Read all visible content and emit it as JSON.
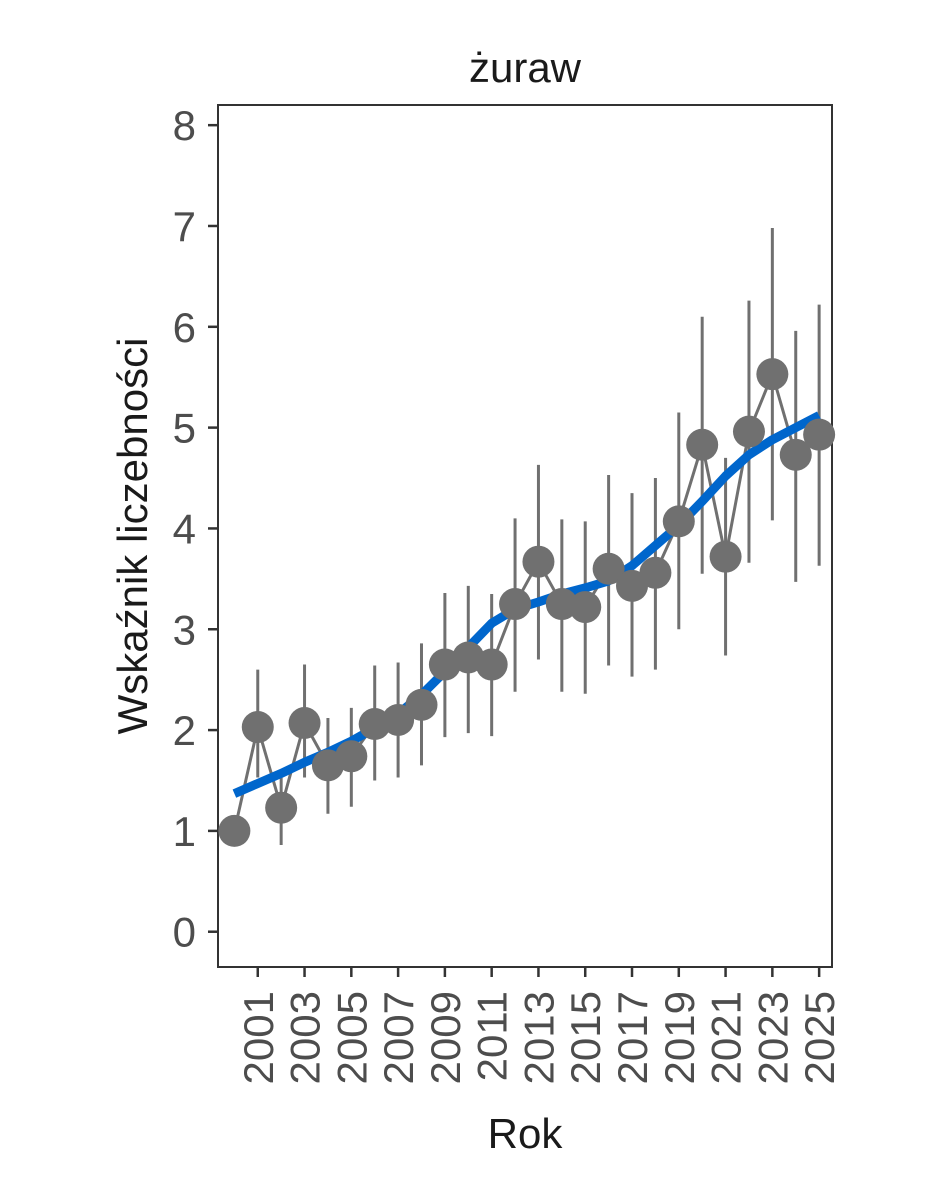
{
  "chart_data": {
    "type": "line",
    "title": "żuraw",
    "xlabel": "Rok",
    "ylabel": "Wskaźnik liczebności",
    "xlim": [
      1999.3,
      2025.55
    ],
    "ylim": [
      -0.35,
      8.2
    ],
    "y_ticks": [
      0,
      1,
      2,
      3,
      4,
      5,
      6,
      7,
      8
    ],
    "x_ticks": [
      2001,
      2003,
      2005,
      2007,
      2009,
      2011,
      2013,
      2015,
      2017,
      2019,
      2021,
      2023,
      2025
    ],
    "x_tick_labels": [
      "2001",
      "2003",
      "2005",
      "2007",
      "2009",
      "2011",
      "2013",
      "2015",
      "2017",
      "2019",
      "2021",
      "2023",
      "2025"
    ],
    "series": [
      {
        "name": "Wskaźnik",
        "color": "#707070",
        "x": [
          2000,
          2001,
          2002,
          2003,
          2004,
          2005,
          2006,
          2007,
          2008,
          2009,
          2010,
          2011,
          2012,
          2013,
          2014,
          2015,
          2016,
          2017,
          2018,
          2019,
          2020,
          2021,
          2022,
          2023,
          2024,
          2025
        ],
        "values": [
          1.0,
          2.03,
          1.23,
          2.07,
          1.65,
          1.74,
          2.06,
          2.1,
          2.25,
          2.65,
          2.72,
          2.65,
          3.25,
          3.67,
          3.25,
          3.22,
          3.6,
          3.43,
          3.56,
          4.07,
          4.83,
          3.72,
          4.96,
          5.53,
          4.73,
          4.93
        ],
        "lower": [
          1.0,
          1.53,
          0.86,
          1.53,
          1.17,
          1.24,
          1.5,
          1.53,
          1.65,
          1.93,
          1.97,
          1.94,
          2.38,
          2.7,
          2.38,
          2.36,
          2.64,
          2.53,
          2.6,
          3.0,
          3.55,
          2.74,
          3.66,
          4.08,
          3.47,
          3.63
        ],
        "upper": [
          1.0,
          2.6,
          1.6,
          2.65,
          2.12,
          2.22,
          2.64,
          2.67,
          2.86,
          3.36,
          3.43,
          3.35,
          4.1,
          4.63,
          4.09,
          4.07,
          4.53,
          4.35,
          4.5,
          5.15,
          6.1,
          4.7,
          6.26,
          6.98,
          5.96,
          6.22
        ]
      },
      {
        "name": "Trend",
        "color": "#0066cc",
        "x": [
          2000,
          2001,
          2002,
          2003,
          2004,
          2005,
          2006,
          2007,
          2008,
          2009,
          2010,
          2011,
          2012,
          2013,
          2014,
          2015,
          2016,
          2017,
          2018,
          2019,
          2020,
          2021,
          2022,
          2023,
          2024,
          2025
        ],
        "values": [
          1.37,
          1.47,
          1.57,
          1.68,
          1.78,
          1.89,
          2.02,
          2.16,
          2.35,
          2.58,
          2.82,
          3.06,
          3.2,
          3.27,
          3.35,
          3.41,
          3.48,
          3.63,
          3.83,
          4.03,
          4.27,
          4.52,
          4.73,
          4.88,
          5.0,
          5.12
        ]
      }
    ]
  }
}
